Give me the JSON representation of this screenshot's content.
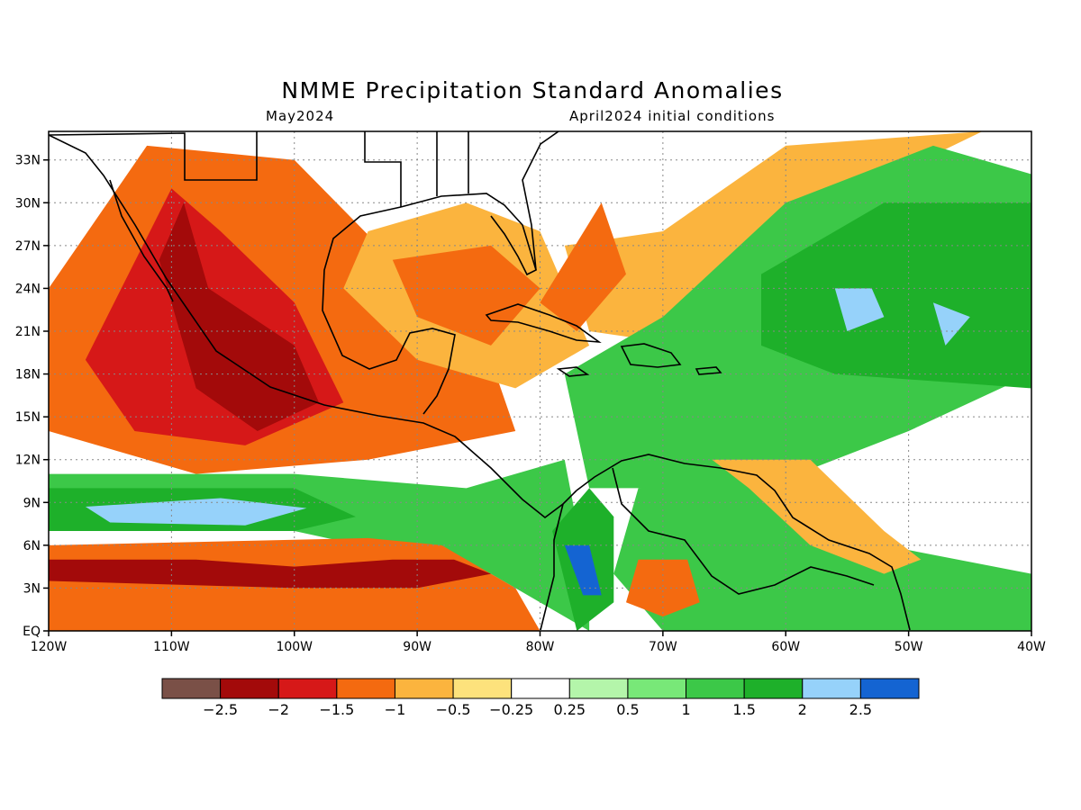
{
  "header": {
    "title": "NMME Precipitation Standard Anomalies",
    "subtitle_left": "May2024",
    "subtitle_right": "April2024 initial conditions"
  },
  "map": {
    "lon_range": [
      -120,
      -40
    ],
    "lat_range": [
      0,
      35
    ],
    "x_ticks": [
      {
        "lon": -120,
        "label": "120W"
      },
      {
        "lon": -110,
        "label": "110W"
      },
      {
        "lon": -100,
        "label": "100W"
      },
      {
        "lon": -90,
        "label": "90W"
      },
      {
        "lon": -80,
        "label": "80W"
      },
      {
        "lon": -70,
        "label": "70W"
      },
      {
        "lon": -60,
        "label": "60W"
      },
      {
        "lon": -50,
        "label": "50W"
      },
      {
        "lon": -40,
        "label": "40W"
      }
    ],
    "y_ticks": [
      {
        "lat": 0,
        "label": "EQ"
      },
      {
        "lat": 3,
        "label": "3N"
      },
      {
        "lat": 6,
        "label": "6N"
      },
      {
        "lat": 9,
        "label": "9N"
      },
      {
        "lat": 12,
        "label": "12N"
      },
      {
        "lat": 15,
        "label": "15N"
      },
      {
        "lat": 18,
        "label": "18N"
      },
      {
        "lat": 21,
        "label": "21N"
      },
      {
        "lat": 24,
        "label": "24N"
      },
      {
        "lat": 27,
        "label": "27N"
      },
      {
        "lat": 30,
        "label": "30N"
      },
      {
        "lat": 33,
        "label": "33N"
      }
    ],
    "grid": true,
    "anomaly_regions": [
      {
        "level": -1.25,
        "points": [
          [
            -120,
            24
          ],
          [
            -112,
            34
          ],
          [
            -100,
            33
          ],
          [
            -92,
            26
          ],
          [
            -86,
            24
          ],
          [
            -82,
            14
          ],
          [
            -94,
            12
          ],
          [
            -108,
            11
          ],
          [
            -120,
            14
          ]
        ]
      },
      {
        "level": -1.75,
        "points": [
          [
            -117,
            19
          ],
          [
            -110,
            31
          ],
          [
            -106,
            28
          ],
          [
            -100,
            23
          ],
          [
            -96,
            16
          ],
          [
            -104,
            13
          ],
          [
            -113,
            14
          ]
        ]
      },
      {
        "level": -2.25,
        "points": [
          [
            -109,
            30
          ],
          [
            -107,
            24
          ],
          [
            -100,
            20
          ],
          [
            -98,
            16
          ],
          [
            -103,
            14
          ],
          [
            -108,
            17
          ],
          [
            -111,
            26
          ]
        ]
      },
      {
        "level": -0.75,
        "points": [
          [
            -94,
            28
          ],
          [
            -86,
            30
          ],
          [
            -80,
            28
          ],
          [
            -76,
            20
          ],
          [
            -82,
            17
          ],
          [
            -90,
            19
          ],
          [
            -96,
            24
          ]
        ]
      },
      {
        "level": -1.25,
        "points": [
          [
            -92,
            26
          ],
          [
            -84,
            27
          ],
          [
            -80,
            24
          ],
          [
            -84,
            20
          ],
          [
            -90,
            22
          ]
        ]
      },
      {
        "level": -0.75,
        "points": [
          [
            -70,
            28
          ],
          [
            -60,
            34
          ],
          [
            -44,
            35
          ],
          [
            -56,
            30
          ],
          [
            -68,
            20
          ],
          [
            -76,
            21
          ],
          [
            -78,
            27
          ]
        ]
      },
      {
        "level": -1.25,
        "points": [
          [
            -80,
            23
          ],
          [
            -75,
            30
          ],
          [
            -73,
            25
          ],
          [
            -77,
            21
          ]
        ]
      },
      {
        "level": 1.25,
        "points": [
          [
            -70,
            22
          ],
          [
            -60,
            30
          ],
          [
            -48,
            34
          ],
          [
            -40,
            32
          ],
          [
            -40,
            18
          ],
          [
            -50,
            14
          ],
          [
            -62,
            10
          ],
          [
            -76,
            10
          ],
          [
            -78,
            18
          ]
        ]
      },
      {
        "level": 1.75,
        "points": [
          [
            -62,
            25
          ],
          [
            -52,
            30
          ],
          [
            -40,
            30
          ],
          [
            -40,
            17
          ],
          [
            -56,
            18
          ],
          [
            -62,
            20
          ]
        ]
      },
      {
        "level": 2.25,
        "points": [
          [
            -56,
            24
          ],
          [
            -53,
            24
          ],
          [
            -52,
            22
          ],
          [
            -55,
            21
          ]
        ]
      },
      {
        "level": 2.25,
        "points": [
          [
            -48,
            23
          ],
          [
            -45,
            22
          ],
          [
            -47,
            20
          ]
        ]
      },
      {
        "level": 1.25,
        "points": [
          [
            -120,
            11
          ],
          [
            -100,
            11
          ],
          [
            -86,
            10
          ],
          [
            -78,
            12
          ],
          [
            -76,
            3
          ],
          [
            -76,
            0
          ],
          [
            -84,
            4
          ],
          [
            -100,
            7
          ],
          [
            -120,
            7
          ]
        ]
      },
      {
        "level": 1.75,
        "points": [
          [
            -120,
            10
          ],
          [
            -100,
            10
          ],
          [
            -95,
            8
          ],
          [
            -100,
            7
          ],
          [
            -120,
            7
          ]
        ]
      },
      {
        "level": 2.25,
        "points": [
          [
            -117,
            8.7
          ],
          [
            -106,
            9.3
          ],
          [
            -99,
            8.6
          ],
          [
            -104,
            7.4
          ],
          [
            -115,
            7.6
          ]
        ]
      },
      {
        "level": 1.75,
        "points": [
          [
            -79,
            7
          ],
          [
            -76,
            10
          ],
          [
            -74,
            8
          ],
          [
            -74,
            2
          ],
          [
            -77,
            0
          ]
        ]
      },
      {
        "level": 2.75,
        "points": [
          [
            -78,
            6
          ],
          [
            -76,
            6
          ],
          [
            -75,
            2.5
          ],
          [
            -76.5,
            2.5
          ]
        ]
      },
      {
        "level": 1.25,
        "points": [
          [
            -72,
            10
          ],
          [
            -62,
            11
          ],
          [
            -52,
            6
          ],
          [
            -40,
            4
          ],
          [
            -40,
            0
          ],
          [
            -70,
            0
          ],
          [
            -74,
            4
          ]
        ]
      },
      {
        "level": -1.25,
        "points": [
          [
            -120,
            6
          ],
          [
            -94,
            6.5
          ],
          [
            -88,
            6
          ],
          [
            -82,
            3
          ],
          [
            -80,
            0
          ],
          [
            -120,
            0
          ]
        ]
      },
      {
        "level": -2.25,
        "points": [
          [
            -120,
            5
          ],
          [
            -108,
            5
          ],
          [
            -100,
            4.5
          ],
          [
            -92,
            5
          ],
          [
            -87,
            5
          ],
          [
            -84,
            4
          ],
          [
            -90,
            3
          ],
          [
            -100,
            3
          ],
          [
            -120,
            3.5
          ]
        ]
      },
      {
        "level": -1.25,
        "points": [
          [
            -72,
            5
          ],
          [
            -68,
            5
          ],
          [
            -67,
            2
          ],
          [
            -70,
            1
          ],
          [
            -73,
            2
          ]
        ]
      },
      {
        "level": -0.75,
        "points": [
          [
            -66,
            12
          ],
          [
            -58,
            12
          ],
          [
            -52,
            7
          ],
          [
            -49,
            5
          ],
          [
            -52,
            4
          ],
          [
            -58,
            6
          ],
          [
            -63,
            10
          ]
        ]
      }
    ]
  },
  "colorbar": {
    "labels": [
      "−2.5",
      "−2",
      "−1.5",
      "−1",
      "−0.5",
      "−0.25",
      "0.25",
      "0.5",
      "1",
      "1.5",
      "2",
      "2.5"
    ],
    "colors": [
      "#7a5047",
      "#a30a0a",
      "#d61818",
      "#f46a10",
      "#fbb43e",
      "#fde27c",
      "#ffffff",
      "#b4f5aa",
      "#78e878",
      "#3cc848",
      "#1eb02a",
      "#96d2fa",
      "#1464d2"
    ]
  }
}
